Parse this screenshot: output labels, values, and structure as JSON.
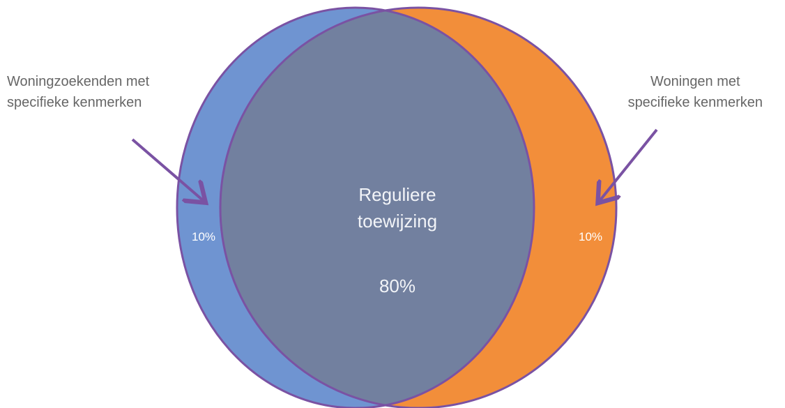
{
  "diagram": {
    "left_label": {
      "lines": [
        "Woningzoekenden met",
        "specifieke kenmerken"
      ],
      "percent": "10%"
    },
    "right_label": {
      "lines": [
        "Woningen met",
        "specifieke kenmerken"
      ],
      "percent": "10%"
    },
    "center": {
      "lines": [
        "Reguliere",
        "toewijzing"
      ],
      "percent": "80%"
    },
    "colors": {
      "left_circle": "#6f94d1",
      "right_circle": "#f28e3a",
      "overlap": "#72809f",
      "outline": "#7a52a3",
      "arrow": "#7a52a3",
      "side_text": "#666666",
      "inner_text": "#f2f4f8"
    }
  }
}
